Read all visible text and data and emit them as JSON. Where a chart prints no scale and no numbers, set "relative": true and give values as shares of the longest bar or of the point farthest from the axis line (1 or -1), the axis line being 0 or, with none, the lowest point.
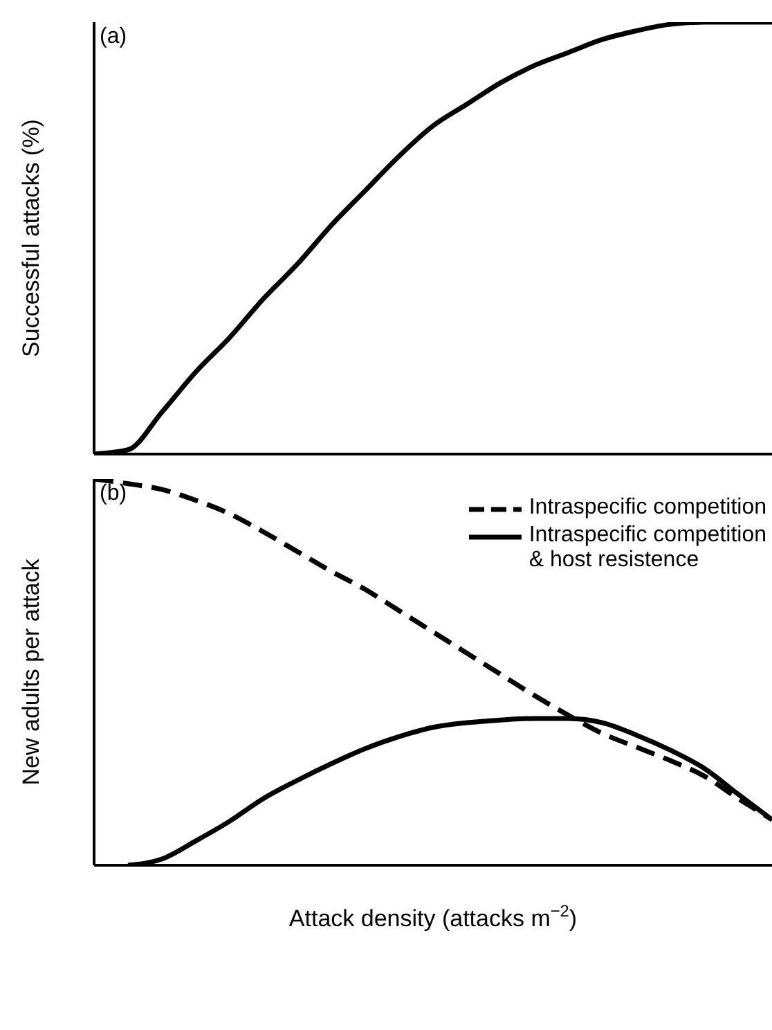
{
  "chart_data": [
    {
      "type": "line",
      "relative": true,
      "ylabel": "Successful attacks (%)",
      "annotations": [
        "(a)"
      ],
      "grid": false,
      "legend": false,
      "categories": [
        null,
        null,
        null,
        null,
        null,
        null,
        null,
        null,
        null,
        null,
        null,
        null,
        null,
        null,
        null,
        null,
        null,
        null,
        null,
        null,
        null
      ],
      "series": [
        {
          "color": "#000000",
          "line_style": "solid",
          "values": [
            0,
            0.01,
            0.097,
            0.19,
            0.27,
            0.36,
            0.44,
            0.53,
            0.61,
            0.69,
            0.76,
            0.81,
            0.86,
            0.9,
            0.93,
            0.96,
            0.98,
            0.995,
            1,
            1,
            1
          ]
        }
      ]
    },
    {
      "type": "line",
      "relative": true,
      "ylabel": "New adults per attack",
      "xlabel": "Attack density (attacks m$^{−2}$)",
      "annotations": [
        "(b)"
      ],
      "grid": false,
      "legend": "top right",
      "categories": [
        null,
        null,
        null,
        null,
        null,
        null,
        null,
        null,
        null,
        null,
        null,
        null,
        null,
        null,
        null,
        null,
        null,
        null,
        null,
        null,
        null
      ],
      "series": [
        {
          "name": "Intraspecific competition",
          "color": "#000000",
          "line_style": "dashed",
          "values": [
            1,
            0.988,
            0.973,
            0.945,
            0.91,
            0.863,
            0.812,
            0.761,
            0.714,
            0.659,
            0.604,
            0.549,
            0.494,
            0.439,
            0.388,
            0.341,
            0.306,
            0.271,
            0.231,
            0.173,
            0.118
          ]
        },
        {
          "name": "Intraspecific competition\n& host resistence",
          "color": "#000000",
          "line_style": "solid",
          "values": [
            null,
            0,
            0.016,
            0.063,
            0.114,
            0.173,
            0.22,
            0.263,
            0.302,
            0.333,
            0.357,
            0.369,
            0.376,
            0.38,
            0.38,
            0.369,
            0.337,
            0.298,
            0.251,
            0.184,
            0.118
          ]
        }
      ]
    }
  ]
}
